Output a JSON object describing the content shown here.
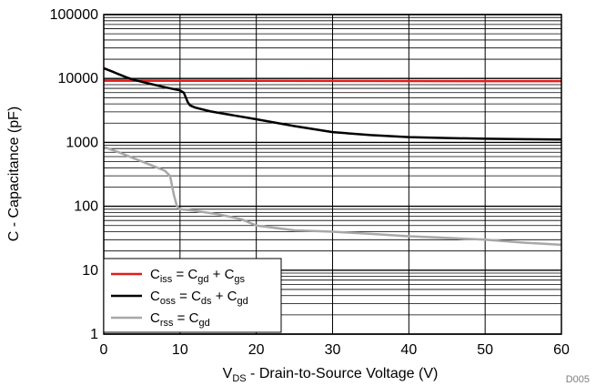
{
  "chart_data": {
    "type": "line",
    "xlabel": {
      "main": "V",
      "sub": "DS",
      "rest": " - Drain-to-Source Voltage (V)"
    },
    "ylabel": "C - Capacitance (pF)",
    "xlim": [
      0,
      60
    ],
    "ylim": [
      1,
      100000
    ],
    "yscale": "log",
    "grid": true,
    "x_ticks": [
      0,
      10,
      20,
      30,
      40,
      50,
      60
    ],
    "x_tick_labels": [
      "0",
      "10",
      "20",
      "30",
      "40",
      "50",
      "60"
    ],
    "y_ticks": [
      1,
      10,
      100,
      1000,
      10000,
      100000
    ],
    "y_tick_labels": [
      "1",
      "10",
      "100",
      "1000",
      "10000",
      "100000"
    ],
    "legend_position": "bottom-left",
    "footer_tag": "D005",
    "series": [
      {
        "id": "ciss",
        "legend": {
          "a": "C",
          "a_sub": "iss",
          "b": " = C",
          "b_sub": "gd",
          "c": " + C",
          "c_sub": "gs"
        },
        "color": "#e21b1b",
        "x": [
          0,
          10,
          20,
          30,
          40,
          50,
          60
        ],
        "y": [
          9300,
          9250,
          9200,
          9150,
          9120,
          9100,
          9080
        ]
      },
      {
        "id": "coss",
        "legend": {
          "a": "C",
          "a_sub": "oss",
          "b": " = C",
          "b_sub": "ds",
          "c": " + C",
          "c_sub": "gd"
        },
        "color": "#000000",
        "x": [
          0,
          1,
          2,
          3,
          4,
          6,
          8,
          10,
          10.5,
          11,
          11.3,
          12,
          14,
          17,
          20,
          25,
          30,
          35,
          40,
          45,
          50,
          55,
          60
        ],
        "y": [
          14500,
          13000,
          11600,
          10400,
          9500,
          8300,
          7300,
          6500,
          6000,
          4300,
          3800,
          3500,
          3050,
          2650,
          2300,
          1800,
          1450,
          1300,
          1210,
          1170,
          1140,
          1120,
          1110
        ]
      },
      {
        "id": "crss",
        "legend": {
          "a": "C",
          "a_sub": "rss",
          "b": " = C",
          "b_sub": "gd",
          "c": "",
          "c_sub": ""
        },
        "color": "#a8a8a8",
        "x": [
          0,
          2,
          4,
          6,
          8,
          8.7,
          9.2,
          9.6,
          10,
          12,
          15,
          18,
          20,
          25,
          30,
          35,
          40,
          45,
          50,
          55,
          60
        ],
        "y": [
          850,
          700,
          560,
          450,
          360,
          300,
          150,
          100,
          90,
          85,
          75,
          63,
          50,
          42,
          40,
          37,
          34,
          32,
          30,
          27,
          25
        ]
      }
    ]
  }
}
